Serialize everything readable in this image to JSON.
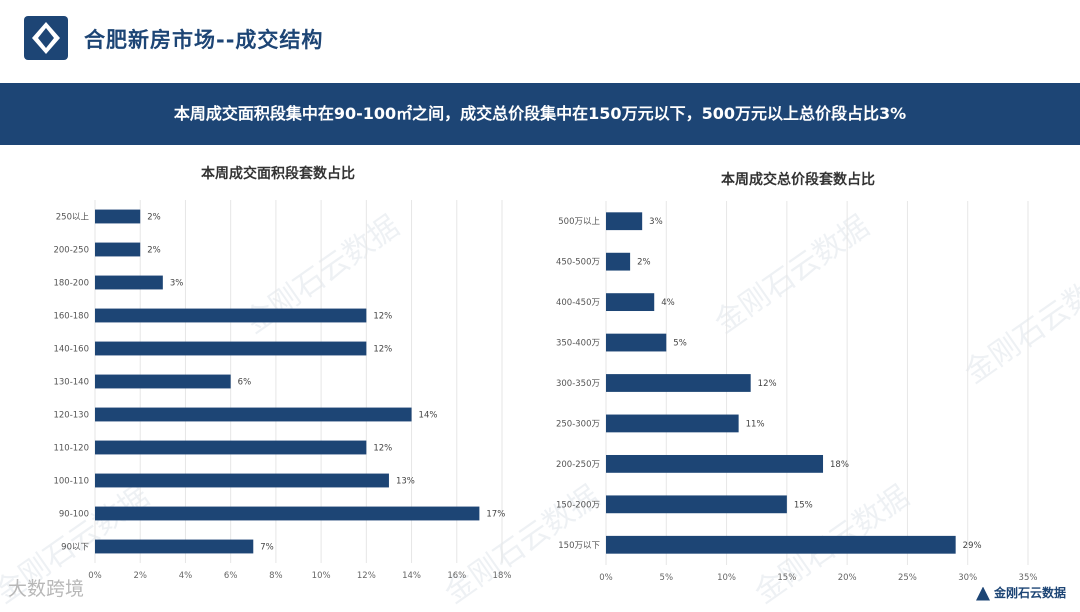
{
  "page": {
    "title": "合肥新房市场--成交结构",
    "banner": "本周成交面积段集中在90-100㎡之间，成交总价段集中在150万元以下，500万元以上总价段占比3%",
    "watermark": "金刚石云数据",
    "footer_left": "大数跨境",
    "footer_right": "金刚石云数据"
  },
  "colors": {
    "brand": "#1d4575",
    "bar": "#1d4575",
    "grid": "#e6e6e6"
  },
  "chart_data": [
    {
      "type": "bar",
      "orientation": "horizontal",
      "title": "本周成交面积段套数占比",
      "categories": [
        "250以上",
        "200-250",
        "180-200",
        "160-180",
        "140-160",
        "130-140",
        "120-130",
        "110-120",
        "100-110",
        "90-100",
        "90以下"
      ],
      "values": [
        2,
        2,
        3,
        12,
        12,
        6,
        14,
        12,
        13,
        17,
        7
      ],
      "value_labels": [
        "2%",
        "2%",
        "3%",
        "12%",
        "12%",
        "6%",
        "14%",
        "12%",
        "13%",
        "17%",
        "7%"
      ],
      "xticks": [
        "0%",
        "2%",
        "4%",
        "6%",
        "8%",
        "10%",
        "12%",
        "14%",
        "16%",
        "18%"
      ],
      "xlim": [
        0,
        18
      ],
      "grid": true
    },
    {
      "type": "bar",
      "orientation": "horizontal",
      "title": "本周成交总价段套数占比",
      "categories": [
        "500万以上",
        "450-500万",
        "400-450万",
        "350-400万",
        "300-350万",
        "250-300万",
        "200-250万",
        "150-200万",
        "150万以下"
      ],
      "values": [
        3,
        2,
        4,
        5,
        12,
        11,
        18,
        15,
        29
      ],
      "value_labels": [
        "3%",
        "2%",
        "4%",
        "5%",
        "12%",
        "11%",
        "18%",
        "15%",
        "29%"
      ],
      "xticks": [
        "0%",
        "5%",
        "10%",
        "15%",
        "20%",
        "25%",
        "30%",
        "35%"
      ],
      "xlim": [
        0,
        35
      ],
      "grid": true
    }
  ]
}
